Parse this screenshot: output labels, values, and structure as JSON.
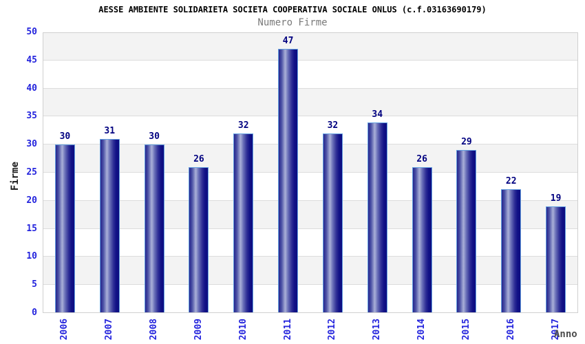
{
  "header": {
    "title": "AESSE AMBIENTE SOLIDARIETA SOCIETA COOPERATIVA SOCIALE ONLUS (c.f.03163690179)",
    "subtitle": "Numero Firme"
  },
  "axes": {
    "x_label": "Anno",
    "y_label": "Firme"
  },
  "chart_data": {
    "type": "bar",
    "title": "AESSE AMBIENTE SOLIDARIETA SOCIETA COOPERATIVA SOCIALE ONLUS (c.f.03163690179)",
    "subtitle": "Numero Firme",
    "xlabel": "Anno",
    "ylabel": "Firme",
    "categories": [
      "2006",
      "2007",
      "2008",
      "2009",
      "2010",
      "2011",
      "2012",
      "2013",
      "2014",
      "2015",
      "2016",
      "2017"
    ],
    "values": [
      30,
      31,
      30,
      26,
      32,
      47,
      32,
      34,
      26,
      29,
      22,
      19
    ],
    "ylim": [
      0,
      50
    ],
    "ytick_step": 5,
    "ytick_labels": [
      "50",
      "45",
      "40",
      "35",
      "30",
      "25",
      "20",
      "15",
      "10",
      "5",
      "0"
    ],
    "grid": "alternating-horizontal-bands",
    "legend": "none",
    "colors": {
      "band_gray": "#f3f3f3",
      "band_white": "#ffffff",
      "gridline": "#dcdcdc",
      "plot_border": "#cfcfcf",
      "tick_label_blue": "#2424dd",
      "value_label_navy": "#000080",
      "bar_border_lightblue": "#64a0e0",
      "title_black": "#000000",
      "subtitle_gray": "#7a7a7a",
      "bar_gradient_stops": [
        "#26268e",
        "#4b51a5",
        "#aab0d8",
        "#6a70b8",
        "#2d2d95",
        "#111186",
        "#0d0d80"
      ],
      "bar_gradient_positions": [
        "0%",
        "15%",
        "35%",
        "50%",
        "70%",
        "85%",
        "100%"
      ]
    }
  }
}
